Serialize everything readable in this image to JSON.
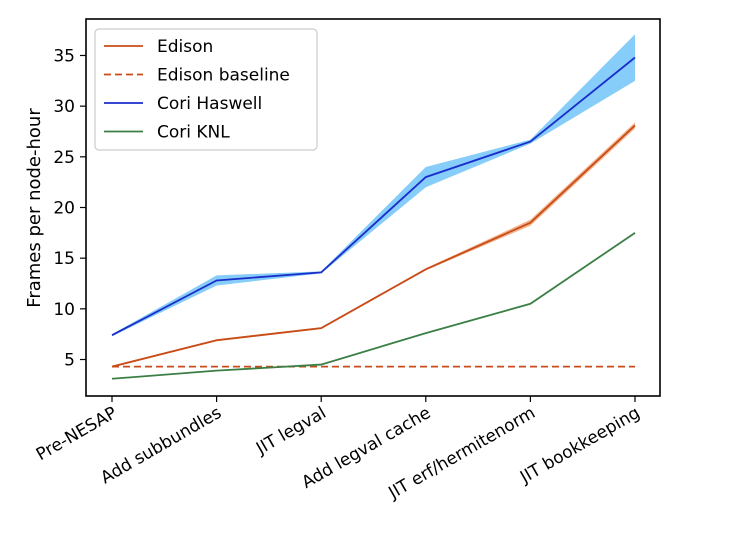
{
  "chart_data": {
    "type": "line",
    "title": "",
    "xlabel": "",
    "ylabel": "Frames per node-hour",
    "categories": [
      "Pre-NESAP",
      "Add subbundles",
      "JIT legval",
      "Add legval cache",
      "JIT erf/hermitenorm",
      "JIT bookkeeping"
    ],
    "yticks": [
      5,
      10,
      15,
      20,
      25,
      30,
      35
    ],
    "ylim": [
      1.4,
      38.6
    ],
    "grid": false,
    "legend_placement": "top-left",
    "series": [
      {
        "name": "Edison",
        "color": "#c84c1a",
        "style": "solid",
        "values": [
          4.3,
          6.9,
          8.1,
          13.9,
          18.5,
          28.1
        ],
        "band_lower": [
          4.2,
          6.8,
          8.0,
          13.8,
          18.2,
          27.8
        ],
        "band_upper": [
          4.4,
          7.0,
          8.2,
          14.0,
          18.8,
          28.4
        ],
        "band_color": "#f4b48c"
      },
      {
        "name": "Edison baseline",
        "color": "#c84c1a",
        "style": "dashed",
        "values": [
          4.3,
          4.3,
          4.3,
          4.3,
          4.3,
          4.3
        ]
      },
      {
        "name": "Cori Haswell",
        "color": "#1a2ecc",
        "style": "solid",
        "values": [
          7.4,
          12.8,
          13.6,
          23.0,
          26.5,
          34.8
        ],
        "band_lower": [
          7.3,
          12.3,
          13.5,
          22.0,
          26.3,
          32.5
        ],
        "band_upper": [
          7.5,
          13.3,
          13.7,
          24.0,
          26.7,
          37.1
        ],
        "band_color": "#86cdf9"
      },
      {
        "name": "Cori KNL",
        "color": "#3b7f45",
        "style": "solid",
        "values": [
          3.1,
          3.9,
          4.5,
          7.6,
          10.5,
          17.5
        ]
      }
    ]
  }
}
